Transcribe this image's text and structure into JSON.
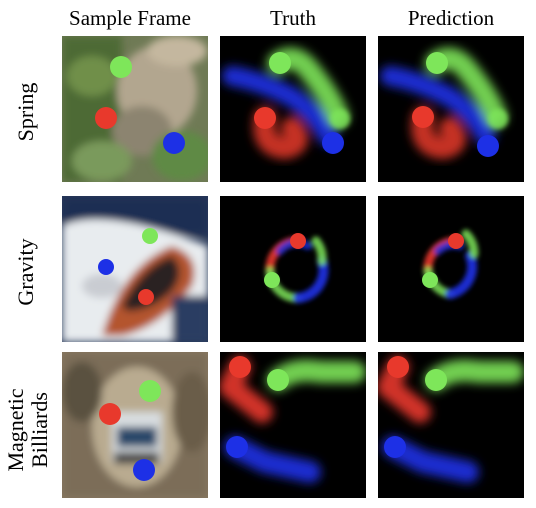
{
  "columns": [
    "Sample Frame",
    "Truth",
    "Prediction"
  ],
  "rows": [
    {
      "label": "Spring"
    },
    {
      "label": "Gravity"
    },
    {
      "label_line1": "Magnetic",
      "label_line2": "Billiards"
    }
  ],
  "colors": {
    "red": "#e8392c",
    "green": "#7ee65a",
    "blue": "#1d30e6",
    "panel_bg": "#000000"
  }
}
